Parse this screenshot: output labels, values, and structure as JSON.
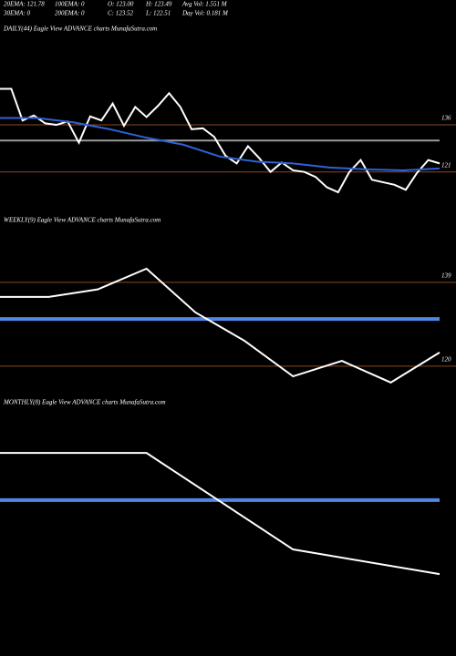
{
  "header": {
    "rows": [
      [
        "20EMA: 121.78",
        "100EMA: 0",
        "O: 123.00",
        "H: 123.49",
        "Avg Vol: 1.551 M"
      ],
      [
        "30EMA: 0",
        "200EMA: 0",
        "C: 123.52",
        "L: 122.51",
        "Day Vol: 0.181 M"
      ]
    ]
  },
  "chart_data": [
    {
      "type": "line",
      "title": "DAILY(44) Eagle  View  ADVANCE charts MunafaSutra.com",
      "ylim": [
        109,
        170
      ],
      "yticks": [
        136,
        121
      ],
      "grid_color": "#8b4a1c",
      "hlines": [
        {
          "value": 131,
          "color": "#9a9a9a",
          "width": 2
        }
      ],
      "series": [
        {
          "color": "#ffffff",
          "width": 2,
          "values": [
            147.5,
            147.5,
            137.4,
            139,
            136.5,
            136,
            137.1,
            130.3,
            138.7,
            137.4,
            142.8,
            135.7,
            141.7,
            138.5,
            142,
            146.1,
            141.7,
            134.6,
            134.9,
            132.2,
            126.2,
            123.7,
            129.2,
            125.4,
            121,
            124,
            121.5,
            121,
            119.4,
            116.1,
            114.5,
            121,
            124.8,
            118.5,
            117.7,
            116.9,
            115.3,
            120.7,
            124.8,
            123.7
          ]
        },
        {
          "color": "#2f62d6",
          "width": 2,
          "values": [
            138.2,
            138.2,
            136.8,
            134.6,
            131.9,
            129.7,
            125.9,
            124.3,
            123.7,
            122.4,
            121.8,
            121.5,
            122.1
          ]
        }
      ]
    },
    {
      "type": "line",
      "title": "WEEKLY(9) Eagle  View  ADVANCE charts MunafaSutra.com",
      "ylim": [
        114.2,
        155.5
      ],
      "yticks": [
        139,
        120
      ],
      "grid_color": "#8b4a1c",
      "hlines": [
        {
          "value": 130.7,
          "color": "#4f86e8",
          "width": 4
        }
      ],
      "series": [
        {
          "color": "#ffffff",
          "width": 2,
          "values": [
            135.7,
            135.7,
            137.4,
            142.1,
            132.2,
            125.8,
            117.7,
            121.2,
            116.3,
            123.1
          ]
        }
      ]
    },
    {
      "type": "line",
      "title": "MONTHLY(8) Eagle  View  ADVANCE charts MunafaSutra.com",
      "ylim": [
        100,
        160
      ],
      "yticks": [],
      "grid_color": "#8b4a1c",
      "hlines": [
        {
          "value": 135.4,
          "color": "#4f86e8",
          "width": 4
        }
      ],
      "series": [
        {
          "color": "#ffffff",
          "width": 2,
          "values": [
            146.1,
            146.1,
            124.2,
            118.6
          ]
        }
      ]
    }
  ]
}
